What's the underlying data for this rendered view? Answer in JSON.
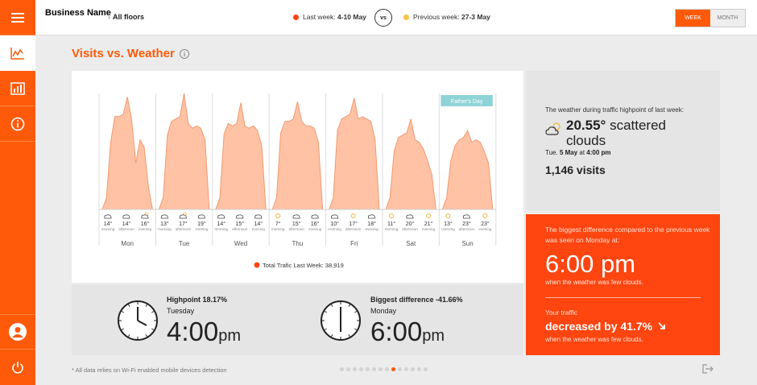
{
  "header": {
    "business_name": "Business Name",
    "floor_selector": "All floors",
    "last_week_label": "Last week: ",
    "last_week_range": "4-10 May",
    "vs_label": "vs",
    "prev_week_label": "Previous week: ",
    "prev_week_range": "27-3 May",
    "toggle_week": "WEEK",
    "toggle_month": "MONTH"
  },
  "page": {
    "title": "Visits vs. Weather"
  },
  "colors": {
    "accent": "#ff5a0a",
    "last_week_dot": "#ff4510",
    "prev_week_dot": "#f8c34a",
    "area_fill": "#ffc2a4",
    "area_stroke": "#f29a72",
    "badge": "#8fd3d6"
  },
  "chart_data": {
    "type": "area",
    "title": "",
    "legend": "Total Trafic Last Week: 38,919",
    "annotation": "Father's Day",
    "annotation_day": "Sun",
    "days": [
      {
        "name": "Mon",
        "weather": [
          {
            "temp": "14°",
            "period": "morning",
            "icon": "cloud"
          },
          {
            "temp": "14°",
            "period": "afternoon",
            "icon": "cloud"
          },
          {
            "temp": "16°",
            "period": "evening",
            "icon": "sun-cloud"
          }
        ],
        "profile": [
          0,
          0.1,
          0.58,
          0.8,
          0.8,
          0.82,
          0.97,
          0.78,
          0.4,
          0.6,
          0.54,
          0.2,
          0
        ]
      },
      {
        "name": "Tue",
        "weather": [
          {
            "temp": "13°",
            "period": "morning",
            "icon": "cloud"
          },
          {
            "temp": "17°",
            "period": "afternoon",
            "icon": "sun-cloud"
          },
          {
            "temp": "19°",
            "period": "evening",
            "icon": "cloud"
          }
        ],
        "profile": [
          0,
          0.1,
          0.64,
          0.76,
          0.78,
          0.8,
          1.0,
          0.74,
          0.7,
          0.72,
          0.7,
          0.6,
          0
        ]
      },
      {
        "name": "Wed",
        "weather": [
          {
            "temp": "14°",
            "period": "morning",
            "icon": "cloud"
          },
          {
            "temp": "15°",
            "period": "afternoon",
            "icon": "cloud"
          },
          {
            "temp": "14°",
            "period": "evening",
            "icon": "cloud"
          }
        ],
        "profile": [
          0,
          0.1,
          0.65,
          0.74,
          0.72,
          0.74,
          0.92,
          0.72,
          0.7,
          0.72,
          0.68,
          0.55,
          0
        ]
      },
      {
        "name": "Thu",
        "weather": [
          {
            "temp": "7°",
            "period": "morning",
            "icon": "sun"
          },
          {
            "temp": "15°",
            "period": "afternoon",
            "icon": "cloud"
          },
          {
            "temp": "16°",
            "period": "evening",
            "icon": "cloud"
          }
        ],
        "profile": [
          0,
          0.1,
          0.66,
          0.76,
          0.76,
          0.78,
          0.93,
          0.76,
          0.72,
          0.72,
          0.7,
          0.58,
          0
        ]
      },
      {
        "name": "Fri",
        "weather": [
          {
            "temp": "10°",
            "period": "morning",
            "icon": "cloud"
          },
          {
            "temp": "17°",
            "period": "afternoon",
            "icon": "sun"
          },
          {
            "temp": "18°",
            "period": "evening",
            "icon": "cloud"
          }
        ],
        "profile": [
          0,
          0.1,
          0.68,
          0.78,
          0.8,
          0.82,
          0.96,
          0.78,
          0.8,
          0.78,
          0.76,
          0.6,
          0
        ]
      },
      {
        "name": "Sat",
        "weather": [
          {
            "temp": "11°",
            "period": "morning",
            "icon": "sun"
          },
          {
            "temp": "20°",
            "period": "afternoon",
            "icon": "cloud"
          },
          {
            "temp": "21°",
            "period": "evening",
            "icon": "sun"
          }
        ],
        "profile": [
          0,
          0.1,
          0.5,
          0.62,
          0.64,
          0.66,
          0.78,
          0.6,
          0.58,
          0.52,
          0.42,
          0.3,
          0
        ]
      },
      {
        "name": "Sun",
        "weather": [
          {
            "temp": "13°",
            "period": "morning",
            "icon": "sun"
          },
          {
            "temp": "23°",
            "period": "afternoon",
            "icon": "cloud"
          },
          {
            "temp": "23°",
            "period": "evening",
            "icon": "sun"
          }
        ],
        "profile": [
          0,
          0.1,
          0.42,
          0.55,
          0.6,
          0.62,
          0.68,
          0.58,
          0.6,
          0.58,
          0.5,
          0.4,
          0
        ]
      }
    ]
  },
  "highpoint": {
    "label": "Highpoint 18.17%",
    "day": "Tuesday",
    "time": "4:00",
    "suffix": "pm"
  },
  "biggest_diff": {
    "label": "Biggest difference -41.66%",
    "day": "Monday",
    "time": "6:00",
    "suffix": "pm"
  },
  "weather_card": {
    "intro": "The weather during traffic highpoint of last week:",
    "temp": "20.55°",
    "condition_1": "scattered",
    "condition_2": "clouds",
    "date_prefix": "Tue. ",
    "date": "5 May",
    "at": " at ",
    "time": "4:00 pm",
    "visits": "1,146 visits"
  },
  "diff_card": {
    "intro": "The biggest difference compared to the previous week was seen on Monday at:",
    "time": "6:00 pm",
    "sub": "when the weather was few clouds.",
    "traffic_label": "Your traffic",
    "change": "decreased by 41.7%",
    "sub2": "when the weather was few clouds."
  },
  "footer": {
    "note": "* All data relies on Wi-Fi enabled mobile devices detection",
    "page_count": 14,
    "current_page": 9
  }
}
